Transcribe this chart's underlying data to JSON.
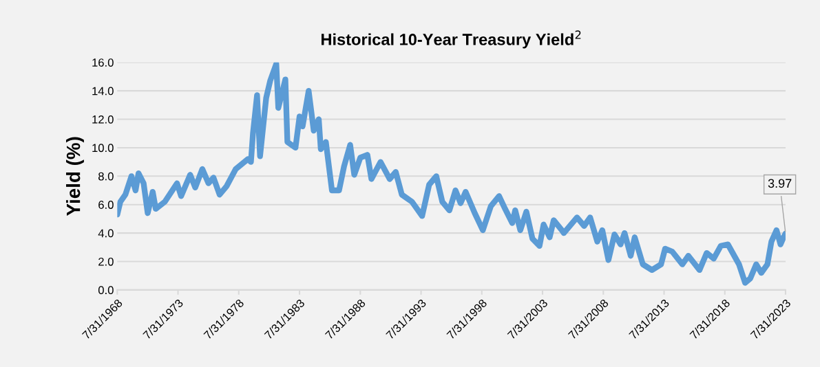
{
  "chart_data": {
    "type": "line",
    "title": "Historical 10-Year Treasury Yield$^{2}$",
    "ylabel": "Yield (%)",
    "x": [
      "1968-08",
      "1968-11",
      "1969-04",
      "1969-10",
      "1970-02",
      "1970-05",
      "1970-10",
      "1971-02",
      "1971-07",
      "1971-10",
      "1972-07",
      "1973-07",
      "1973-11",
      "1974-08",
      "1975-01",
      "1975-08",
      "1976-02",
      "1976-07",
      "1977-01",
      "1977-08",
      "1978-05",
      "1979-05",
      "1979-08",
      "1979-10",
      "1980-02",
      "1980-05",
      "1980-11",
      "1981-03",
      "1981-09",
      "1981-11",
      "1982-06",
      "1982-08",
      "1983-04",
      "1983-08",
      "1983-11",
      "1984-05",
      "1984-10",
      "1985-03",
      "1985-05",
      "1985-10",
      "1986-04",
      "1986-11",
      "1987-04",
      "1987-10",
      "1988-02",
      "1988-08",
      "1989-03",
      "1989-07",
      "1990-04",
      "1991-01",
      "1991-07",
      "1992-01",
      "1992-11",
      "1993-09",
      "1994-04",
      "1994-11",
      "1995-05",
      "1995-12",
      "1996-06",
      "1996-11",
      "1997-04",
      "1998-01",
      "1998-09",
      "1999-05",
      "2000-01",
      "2000-07",
      "2001-02",
      "2001-05",
      "2001-10",
      "2002-04",
      "2002-10",
      "2003-05",
      "2003-09",
      "2004-03",
      "2004-07",
      "2005-03",
      "2005-05",
      "2006-06",
      "2007-01",
      "2007-07",
      "2008-02",
      "2008-07",
      "2009-01",
      "2009-07",
      "2010-01",
      "2010-05",
      "2010-11",
      "2011-03",
      "2011-11",
      "2012-08",
      "2013-05",
      "2013-09",
      "2014-04",
      "2015-02",
      "2015-08",
      "2016-07",
      "2017-02",
      "2017-09",
      "2018-04",
      "2018-11",
      "2019-10",
      "2020-04",
      "2020-09",
      "2021-03",
      "2021-08",
      "2022-02",
      "2022-06",
      "2022-11",
      "2023-03",
      "2023-06",
      "2023-07-31"
    ],
    "series": [
      {
        "color": "#5b9bd5",
        "values": [
          5.3,
          6.2,
          6.7,
          8.0,
          7.0,
          8.2,
          7.5,
          5.4,
          6.9,
          5.7,
          6.2,
          7.5,
          6.6,
          8.1,
          7.2,
          8.5,
          7.5,
          7.9,
          6.7,
          7.3,
          8.5,
          9.2,
          9.0,
          11.0,
          13.7,
          9.4,
          13.5,
          14.7,
          15.9,
          12.8,
          14.8,
          10.4,
          10.0,
          12.2,
          11.5,
          14.0,
          11.2,
          12.0,
          9.9,
          10.4,
          7.0,
          7.0,
          8.7,
          10.2,
          8.1,
          9.3,
          9.5,
          7.8,
          9.0,
          7.8,
          8.3,
          6.7,
          6.2,
          5.2,
          7.4,
          8.0,
          6.2,
          5.6,
          7.0,
          6.1,
          6.9,
          5.4,
          4.2,
          5.9,
          6.6,
          5.7,
          4.7,
          5.6,
          4.2,
          5.5,
          3.6,
          3.1,
          4.6,
          3.7,
          4.9,
          4.2,
          4.0,
          5.1,
          4.5,
          5.1,
          3.4,
          4.2,
          2.1,
          3.9,
          3.2,
          4.0,
          2.4,
          3.7,
          1.8,
          1.4,
          1.8,
          2.9,
          2.7,
          1.8,
          2.4,
          1.4,
          2.6,
          2.2,
          3.1,
          3.2,
          1.8,
          0.5,
          0.8,
          1.8,
          1.2,
          1.8,
          3.4,
          4.2,
          3.2,
          3.7,
          3.97
        ]
      }
    ],
    "xlim": [
      "1968-07-31",
      "2023-07-31"
    ],
    "xticks": [
      {
        "value": "1968-07-31",
        "label": "7/31/1968"
      },
      {
        "value": "1973-07-31",
        "label": "7/31/1973"
      },
      {
        "value": "1978-07-31",
        "label": "7/31/1978"
      },
      {
        "value": "1983-07-31",
        "label": "7/31/1983"
      },
      {
        "value": "1988-07-31",
        "label": "7/31/1988"
      },
      {
        "value": "1993-07-31",
        "label": "7/31/1993"
      },
      {
        "value": "1998-07-31",
        "label": "7/31/1998"
      },
      {
        "value": "2003-07-31",
        "label": "7/31/2003"
      },
      {
        "value": "2008-07-31",
        "label": "7/31/2008"
      },
      {
        "value": "2013-07-31",
        "label": "7/31/2013"
      },
      {
        "value": "2018-07-31",
        "label": "7/31/2018"
      },
      {
        "value": "2023-07-31",
        "label": "7/31/2023"
      }
    ],
    "ylim": [
      0,
      16
    ],
    "yticks": [
      {
        "value": 0,
        "label": "0.0"
      },
      {
        "value": 2,
        "label": "2.0"
      },
      {
        "value": 4,
        "label": "4.0"
      },
      {
        "value": 6,
        "label": "6.0"
      },
      {
        "value": 8,
        "label": "8.0"
      },
      {
        "value": 10,
        "label": "10.0"
      },
      {
        "value": 12,
        "label": "12.0"
      },
      {
        "value": 14,
        "label": "14.0"
      },
      {
        "value": 16,
        "label": "16.0"
      }
    ],
    "grid": "y",
    "line_style": "solid",
    "marker": "none",
    "annotations": [
      {
        "text": "3.97",
        "x": "2023-07-31",
        "y": 3.97
      }
    ]
  }
}
